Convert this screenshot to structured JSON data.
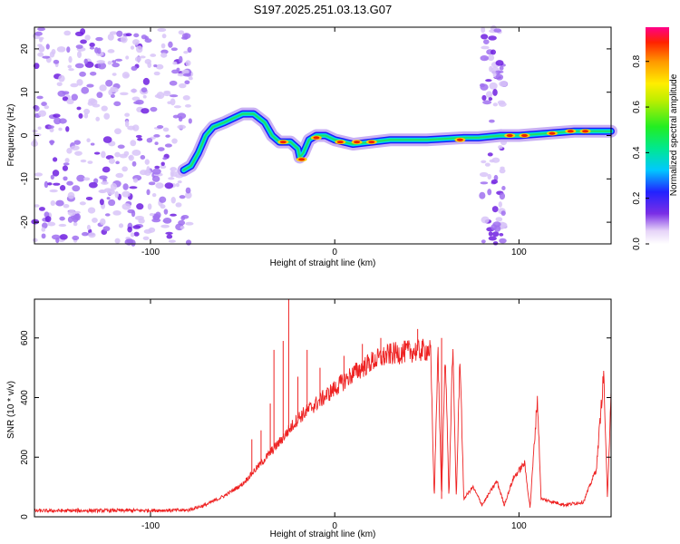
{
  "title": "S197.2025.251.03.13.G07",
  "chart_data": [
    {
      "type": "heatmap",
      "xlabel": "Height of straight line (km)",
      "ylabel": "Frequency (Hz)",
      "xlim": [
        -163,
        150
      ],
      "ylim": [
        -25,
        25
      ],
      "xticks": [
        -100,
        0,
        100
      ],
      "yticks": [
        -20,
        -10,
        0,
        10,
        20
      ],
      "colorbar": {
        "label": "Normalized spectral amplitude",
        "range": [
          0,
          0.95
        ],
        "ticks": [
          0.0,
          0.2,
          0.4,
          0.6,
          0.8
        ]
      },
      "noise_regions": [
        [
          -163,
          -78
        ],
        [
          80,
          92
        ]
      ],
      "ridge": [
        {
          "x": -82,
          "y": -8
        },
        {
          "x": -78,
          "y": -7
        },
        {
          "x": -74,
          "y": -4
        },
        {
          "x": -70,
          "y": 0
        },
        {
          "x": -66,
          "y": 2
        },
        {
          "x": -60,
          "y": 3
        },
        {
          "x": -55,
          "y": 4
        },
        {
          "x": -50,
          "y": 5
        },
        {
          "x": -44,
          "y": 5
        },
        {
          "x": -38,
          "y": 3
        },
        {
          "x": -34,
          "y": 0
        },
        {
          "x": -30,
          "y": -1.5
        },
        {
          "x": -24,
          "y": -1.5
        },
        {
          "x": -20,
          "y": -3
        },
        {
          "x": -19,
          "y": -5
        },
        {
          "x": -17,
          "y": -4
        },
        {
          "x": -14,
          "y": -1
        },
        {
          "x": -10,
          "y": 0
        },
        {
          "x": -5,
          "y": 0
        },
        {
          "x": 0,
          "y": -1
        },
        {
          "x": 10,
          "y": -2
        },
        {
          "x": 20,
          "y": -1.5
        },
        {
          "x": 30,
          "y": -1
        },
        {
          "x": 50,
          "y": -1
        },
        {
          "x": 70,
          "y": -0.5
        },
        {
          "x": 78,
          "y": -0.5
        },
        {
          "x": 90,
          "y": 0
        },
        {
          "x": 100,
          "y": 0
        },
        {
          "x": 115,
          "y": 0.5
        },
        {
          "x": 130,
          "y": 1
        },
        {
          "x": 145,
          "y": 1
        },
        {
          "x": 150,
          "y": 1
        }
      ],
      "hotspots": [
        {
          "x": -28,
          "y": -1.5
        },
        {
          "x": -18,
          "y": -5.5
        },
        {
          "x": -10,
          "y": -0.5
        },
        {
          "x": 3,
          "y": -1.5
        },
        {
          "x": 12,
          "y": -1.5
        },
        {
          "x": 20,
          "y": -1.5
        },
        {
          "x": 68,
          "y": -1
        },
        {
          "x": 95,
          "y": 0
        },
        {
          "x": 103,
          "y": 0
        },
        {
          "x": 118,
          "y": 0.5
        },
        {
          "x": 128,
          "y": 1
        },
        {
          "x": 136,
          "y": 1
        }
      ]
    },
    {
      "type": "line",
      "xlabel": "Height of straight line (km)",
      "ylabel": "SNR (10 * v/v)",
      "xlim": [
        -163,
        150
      ],
      "ylim": [
        0,
        730
      ],
      "xticks": [
        -100,
        0,
        100
      ],
      "yticks": [
        0,
        200,
        400,
        600
      ],
      "color": "#ee2222",
      "envelope": [
        {
          "x": -163,
          "y": 20
        },
        {
          "x": -80,
          "y": 22
        },
        {
          "x": -70,
          "y": 40
        },
        {
          "x": -60,
          "y": 70
        },
        {
          "x": -50,
          "y": 110
        },
        {
          "x": -40,
          "y": 180
        },
        {
          "x": -30,
          "y": 250
        },
        {
          "x": -20,
          "y": 330
        },
        {
          "x": -10,
          "y": 380
        },
        {
          "x": 0,
          "y": 430
        },
        {
          "x": 10,
          "y": 480
        },
        {
          "x": 20,
          "y": 520
        },
        {
          "x": 30,
          "y": 545
        },
        {
          "x": 40,
          "y": 555
        },
        {
          "x": 52,
          "y": 560
        },
        {
          "x": 54,
          "y": 60
        },
        {
          "x": 56,
          "y": 560
        },
        {
          "x": 58,
          "y": 60
        },
        {
          "x": 60,
          "y": 570
        },
        {
          "x": 62,
          "y": 60
        },
        {
          "x": 64,
          "y": 570
        },
        {
          "x": 66,
          "y": 60
        },
        {
          "x": 68,
          "y": 550
        },
        {
          "x": 70,
          "y": 60
        },
        {
          "x": 75,
          "y": 100
        },
        {
          "x": 80,
          "y": 40
        },
        {
          "x": 88,
          "y": 120
        },
        {
          "x": 92,
          "y": 40
        },
        {
          "x": 97,
          "y": 130
        },
        {
          "x": 103,
          "y": 180
        },
        {
          "x": 106,
          "y": 30
        },
        {
          "x": 110,
          "y": 400
        },
        {
          "x": 112,
          "y": 60
        },
        {
          "x": 125,
          "y": 40
        },
        {
          "x": 135,
          "y": 50
        },
        {
          "x": 142,
          "y": 160
        },
        {
          "x": 146,
          "y": 480
        },
        {
          "x": 148,
          "y": 60
        },
        {
          "x": 150,
          "y": 430
        }
      ],
      "spikes": [
        {
          "x": -45,
          "y": 260
        },
        {
          "x": -40,
          "y": 290
        },
        {
          "x": -35,
          "y": 380
        },
        {
          "x": -33,
          "y": 560
        },
        {
          "x": -28,
          "y": 590
        },
        {
          "x": -25,
          "y": 730
        },
        {
          "x": -20,
          "y": 470
        },
        {
          "x": -15,
          "y": 560
        },
        {
          "x": -8,
          "y": 500
        },
        {
          "x": 5,
          "y": 540
        },
        {
          "x": 15,
          "y": 580
        },
        {
          "x": 25,
          "y": 600
        },
        {
          "x": 45,
          "y": 630
        },
        {
          "x": 58,
          "y": 600
        }
      ]
    }
  ]
}
